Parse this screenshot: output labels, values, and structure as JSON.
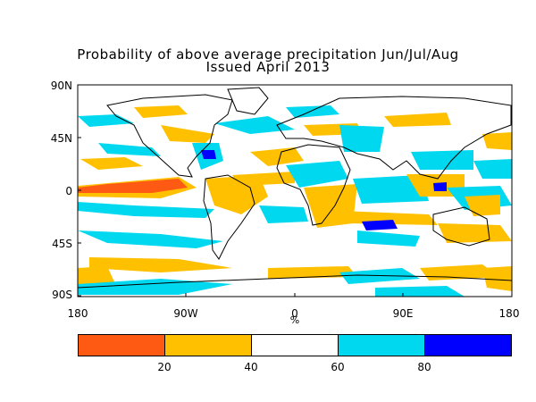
{
  "title": "Probability of above average precipitation Jun/Jul/Aug",
  "subtitle": "Issued April 2013",
  "y_ticks": [
    "90N",
    "45N",
    "0",
    "45S",
    "90S"
  ],
  "x_ticks": [
    "180",
    "90W",
    "0",
    "90E",
    "180"
  ],
  "x_unit": "%",
  "colorbar": {
    "colors": [
      "#ff5a14",
      "#ffc000",
      "#ffffff",
      "#00d8f0",
      "#0000ff"
    ],
    "labels": [
      "20",
      "40",
      "60",
      "80"
    ]
  }
}
